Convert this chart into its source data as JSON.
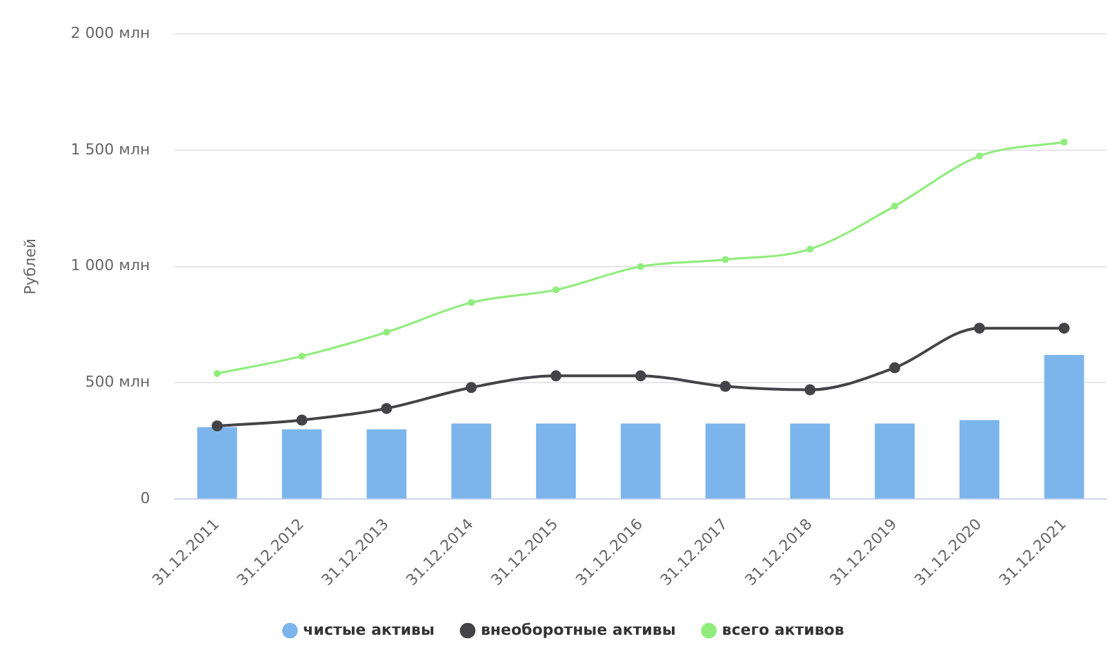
{
  "chart_data": {
    "type": "bar",
    "categories": [
      "31.12.2011",
      "31.12.2012",
      "31.12.2013",
      "31.12.2014",
      "31.12.2015",
      "31.12.2016",
      "31.12.2017",
      "31.12.2018",
      "31.12.2019",
      "31.12.2020",
      "31.12.2021"
    ],
    "ylabel": "Рублей",
    "ylim": [
      0,
      2000
    ],
    "yticks": [
      0,
      {
        "value": 500,
        "label": "500 млн"
      },
      {
        "value": 1000,
        "label": "1 000 млн"
      },
      {
        "value": 1500,
        "label": "1 500 млн"
      },
      {
        "value": 2000,
        "label": "2 000 млн"
      }
    ],
    "series": [
      {
        "name": "чистые активы",
        "color": "#7cb5ec",
        "values": [
          310,
          300,
          300,
          325,
          325,
          325,
          325,
          325,
          325,
          340,
          620
        ]
      },
      {
        "name": "внеоборотные активы",
        "type": "line",
        "color": "#434348",
        "values": [
          315,
          340,
          390,
          480,
          530,
          530,
          485,
          470,
          565,
          735,
          735
        ]
      },
      {
        "name": "всего активов",
        "type": "line",
        "color": "#90ed7d",
        "values": [
          540,
          615,
          718,
          845,
          900,
          1000,
          1030,
          1075,
          1260,
          1475,
          1535
        ]
      }
    ],
    "grid": "y",
    "legend": "bottom",
    "marker": "circle"
  }
}
